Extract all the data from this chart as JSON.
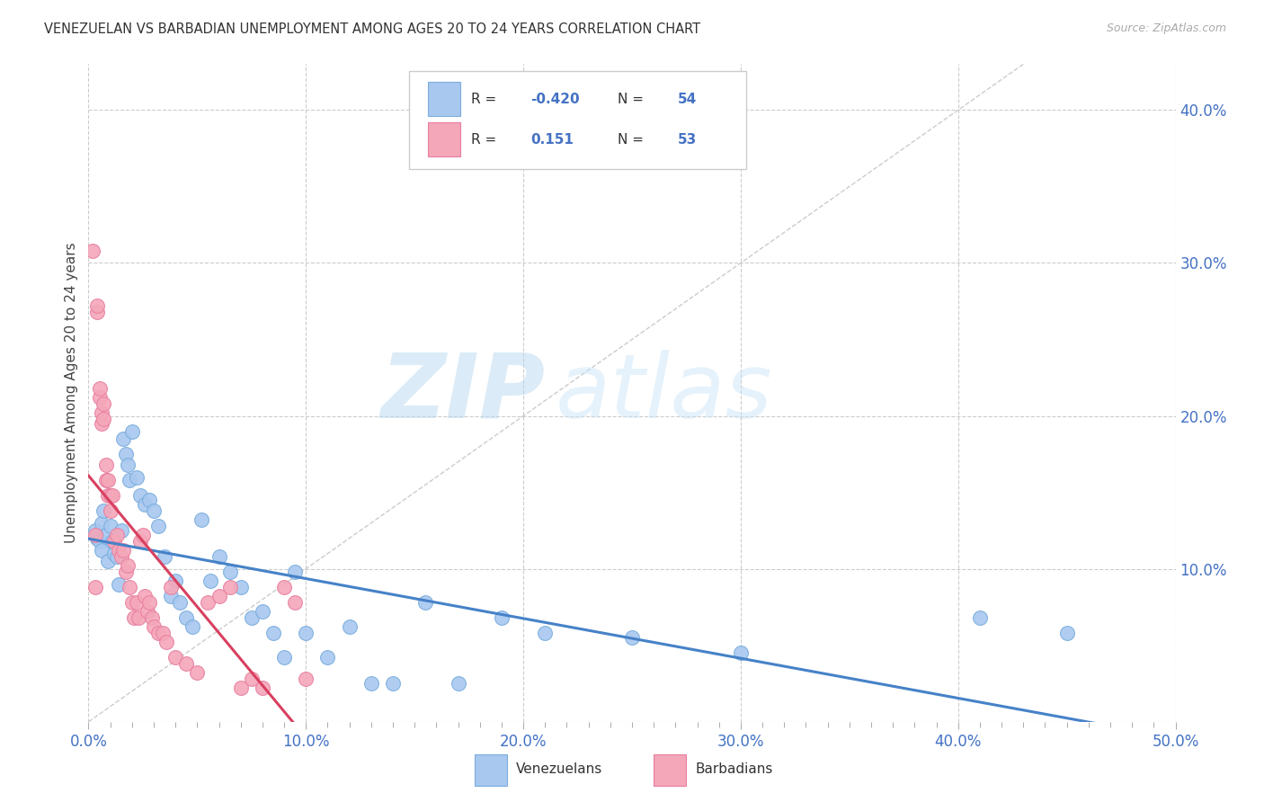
{
  "title": "VENEZUELAN VS BARBADIAN UNEMPLOYMENT AMONG AGES 20 TO 24 YEARS CORRELATION CHART",
  "source": "Source: ZipAtlas.com",
  "xlabel_ticks": [
    "0.0%",
    "",
    "",
    "",
    "",
    "",
    "",
    "",
    "",
    "",
    "10.0%",
    "",
    "",
    "",
    "",
    "",
    "",
    "",
    "",
    "",
    "20.0%",
    "",
    "",
    "",
    "",
    "",
    "",
    "",
    "",
    "",
    "30.0%",
    "",
    "",
    "",
    "",
    "",
    "",
    "",
    "",
    "",
    "40.0%",
    "",
    "",
    "",
    "",
    "",
    "",
    "",
    "",
    "",
    "50.0%"
  ],
  "xlabel_tick_vals": [
    0.0,
    0.01,
    0.02,
    0.03,
    0.04,
    0.05,
    0.06,
    0.07,
    0.08,
    0.09,
    0.1,
    0.11,
    0.12,
    0.13,
    0.14,
    0.15,
    0.16,
    0.17,
    0.18,
    0.19,
    0.2,
    0.21,
    0.22,
    0.23,
    0.24,
    0.25,
    0.26,
    0.27,
    0.28,
    0.29,
    0.3,
    0.31,
    0.32,
    0.33,
    0.34,
    0.35,
    0.36,
    0.37,
    0.38,
    0.39,
    0.4,
    0.41,
    0.42,
    0.43,
    0.44,
    0.45,
    0.46,
    0.47,
    0.48,
    0.49,
    0.5
  ],
  "major_xlabel_ticks": [
    "0.0%",
    "10.0%",
    "20.0%",
    "30.0%",
    "40.0%",
    "50.0%"
  ],
  "major_xlabel_vals": [
    0.0,
    0.1,
    0.2,
    0.3,
    0.4,
    0.5
  ],
  "ylabel_ticks": [
    "10.0%",
    "20.0%",
    "30.0%",
    "40.0%"
  ],
  "ylabel_tick_vals": [
    0.1,
    0.2,
    0.3,
    0.4
  ],
  "xlim": [
    0.0,
    0.5
  ],
  "ylim": [
    0.0,
    0.43
  ],
  "ylabel": "Unemployment Among Ages 20 to 24 years",
  "venezuelan_color": "#a8c8f0",
  "barbadian_color": "#f4a7b9",
  "venezuelan_edge": "#7aaddd",
  "barbadian_edge": "#e87fa0",
  "trend_venezuelan_color": "#4682c8",
  "trend_barbadian_color": "#d84060",
  "R_venezuelan": -0.42,
  "N_venezuelan": 54,
  "R_barbadian": 0.151,
  "N_barbadian": 53,
  "legend_label_venezuelan": "Venezuelans",
  "legend_label_barbadian": "Barbadians",
  "watermark_zip": "ZIP",
  "watermark_atlas": "atlas",
  "background_color": "#ffffff",
  "grid_color": "#cccccc",
  "venezuelan_x": [
    0.003,
    0.004,
    0.005,
    0.006,
    0.006,
    0.007,
    0.008,
    0.009,
    0.01,
    0.011,
    0.012,
    0.013,
    0.014,
    0.015,
    0.016,
    0.017,
    0.018,
    0.019,
    0.02,
    0.022,
    0.024,
    0.026,
    0.028,
    0.03,
    0.032,
    0.035,
    0.038,
    0.04,
    0.042,
    0.045,
    0.048,
    0.052,
    0.056,
    0.06,
    0.065,
    0.07,
    0.075,
    0.08,
    0.085,
    0.09,
    0.095,
    0.1,
    0.11,
    0.12,
    0.13,
    0.14,
    0.155,
    0.17,
    0.19,
    0.21,
    0.25,
    0.3,
    0.41,
    0.45
  ],
  "venezuelan_y": [
    0.125,
    0.12,
    0.118,
    0.13,
    0.112,
    0.138,
    0.122,
    0.105,
    0.128,
    0.118,
    0.11,
    0.108,
    0.09,
    0.125,
    0.185,
    0.175,
    0.168,
    0.158,
    0.19,
    0.16,
    0.148,
    0.142,
    0.145,
    0.138,
    0.128,
    0.108,
    0.082,
    0.092,
    0.078,
    0.068,
    0.062,
    0.132,
    0.092,
    0.108,
    0.098,
    0.088,
    0.068,
    0.072,
    0.058,
    0.042,
    0.098,
    0.058,
    0.042,
    0.062,
    0.025,
    0.025,
    0.078,
    0.025,
    0.068,
    0.058,
    0.055,
    0.045,
    0.068,
    0.058
  ],
  "barbadian_x": [
    0.002,
    0.003,
    0.003,
    0.004,
    0.004,
    0.005,
    0.005,
    0.006,
    0.006,
    0.007,
    0.007,
    0.008,
    0.008,
    0.009,
    0.009,
    0.01,
    0.01,
    0.011,
    0.012,
    0.013,
    0.014,
    0.015,
    0.016,
    0.017,
    0.018,
    0.019,
    0.02,
    0.021,
    0.022,
    0.023,
    0.024,
    0.025,
    0.026,
    0.027,
    0.028,
    0.029,
    0.03,
    0.032,
    0.034,
    0.036,
    0.038,
    0.04,
    0.045,
    0.05,
    0.055,
    0.06,
    0.065,
    0.07,
    0.075,
    0.08,
    0.09,
    0.095,
    0.1
  ],
  "barbadian_y": [
    0.308,
    0.122,
    0.088,
    0.268,
    0.272,
    0.212,
    0.218,
    0.195,
    0.202,
    0.198,
    0.208,
    0.158,
    0.168,
    0.158,
    0.148,
    0.148,
    0.138,
    0.148,
    0.118,
    0.122,
    0.112,
    0.108,
    0.112,
    0.098,
    0.102,
    0.088,
    0.078,
    0.068,
    0.078,
    0.068,
    0.118,
    0.122,
    0.082,
    0.072,
    0.078,
    0.068,
    0.062,
    0.058,
    0.058,
    0.052,
    0.088,
    0.042,
    0.038,
    0.032,
    0.078,
    0.082,
    0.088,
    0.022,
    0.028,
    0.022,
    0.088,
    0.078,
    0.028
  ]
}
